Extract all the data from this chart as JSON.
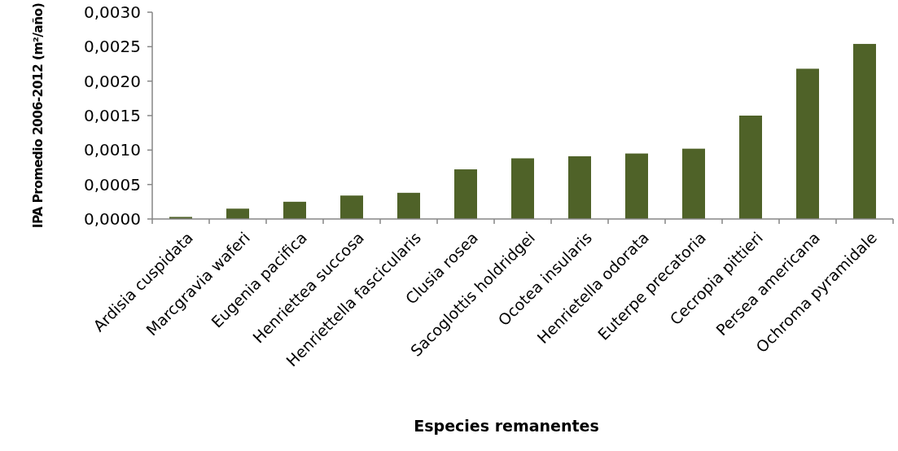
{
  "chart_data": {
    "type": "bar",
    "xlabel": "Especies remanentes",
    "ylabel": "IPA Promedio 2006-2012 (m²/año)",
    "categories": [
      "Ardisia cuspidata",
      "Marcgravia waferi",
      "Eugenia pacifica",
      "Henriettea succosa",
      "Henriettella fascicularis",
      "Clusia rosea",
      "Sacoglottis holdridgei",
      "Ocotea insularis",
      "Henrietella odorata",
      "Euterpe precatoria",
      "Cecropia pittieri",
      "Persea americana",
      "Ochroma pyramidale"
    ],
    "series": [
      {
        "color": "#4f6228",
        "values": [
          3e-05,
          0.00015,
          0.00025,
          0.00034,
          0.00038,
          0.00072,
          0.00088,
          0.00091,
          0.00095,
          0.00102,
          0.0015,
          0.00218,
          0.00254
        ]
      }
    ],
    "ylim": [
      0,
      0.003
    ],
    "yticks": [
      {
        "value": 0,
        "label": "0,0000"
      },
      {
        "value": 0.0005,
        "label": "0,0005"
      },
      {
        "value": 0.001,
        "label": "0,0010"
      },
      {
        "value": 0.0015,
        "label": "0,0015"
      },
      {
        "value": 0.002,
        "label": "0,0020"
      },
      {
        "value": 0.0025,
        "label": "0,0025"
      },
      {
        "value": 0.003,
        "label": "0,0030"
      }
    ],
    "grid": false
  }
}
